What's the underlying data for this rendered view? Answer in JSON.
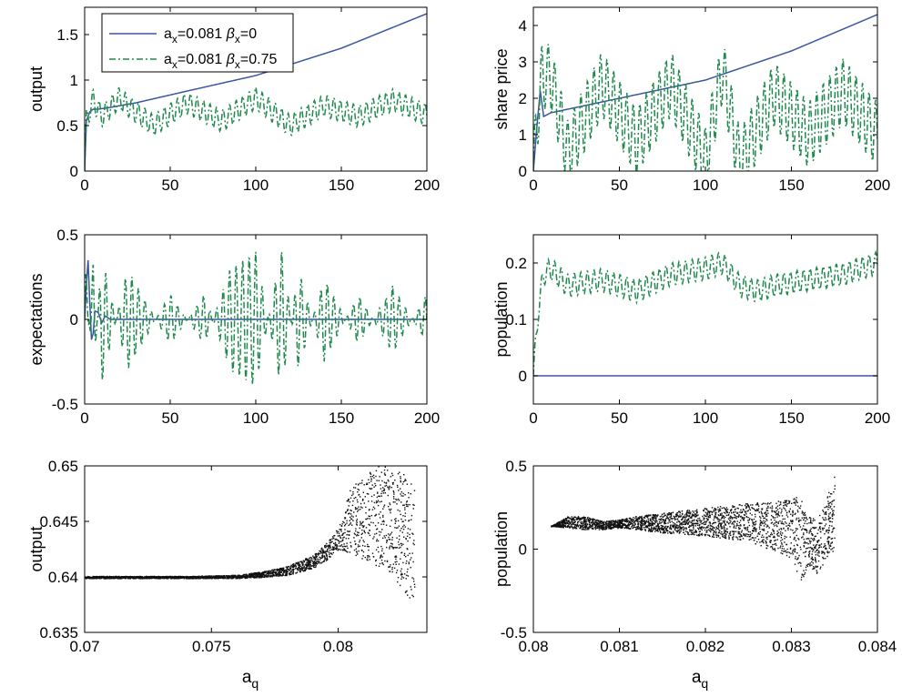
{
  "colors": {
    "blue": "#3a56a0",
    "green": "#1f8a4c",
    "black": "#111111"
  },
  "legend": {
    "entries": [
      {
        "series": "blue",
        "a_base": "a",
        "a_sub": "x",
        "a_rest": "=0.081 ",
        "b_base": "β",
        "b_sub": "x",
        "b_rest": "=0"
      },
      {
        "series": "green",
        "a_base": "a",
        "a_sub": "x",
        "a_rest": "=0.081 ",
        "b_base": "β",
        "b_sub": "x",
        "b_rest": "=0.75"
      }
    ]
  },
  "chart_data": [
    {
      "type": "line",
      "ylabel": "output",
      "xlim": [
        0,
        200
      ],
      "ylim": [
        0,
        1.8
      ],
      "xticks": [
        "0",
        "50",
        "100",
        "150",
        "200"
      ],
      "yticks": [
        "0",
        "0.5",
        "1",
        "1.5"
      ],
      "ytick_values": [
        0,
        0.5,
        1,
        1.5
      ],
      "series": [
        {
          "color": "blue",
          "style": "solid",
          "x": [
            0,
            1,
            3,
            5,
            8,
            15,
            30,
            60,
            100,
            150,
            200
          ],
          "y": [
            0,
            0.55,
            0.65,
            0.68,
            0.68,
            0.7,
            0.75,
            0.88,
            1.05,
            1.35,
            1.73
          ]
        },
        {
          "color": "green",
          "style": "dashdot",
          "x": [
            0,
            1,
            2,
            5,
            10,
            20,
            40,
            60,
            80,
            100,
            120,
            140,
            160,
            180,
            200
          ],
          "y": [
            0,
            0.55,
            0.62,
            0.78,
            0.6,
            0.8,
            0.5,
            0.75,
            0.55,
            0.8,
            0.5,
            0.72,
            0.6,
            0.78,
            0.62
          ]
        }
      ]
    },
    {
      "type": "line",
      "ylabel": "share price",
      "xlim": [
        0,
        200
      ],
      "ylim": [
        0,
        4.5
      ],
      "xticks": [
        "0",
        "50",
        "100",
        "150",
        "200"
      ],
      "yticks": [
        "0",
        "1",
        "2",
        "3",
        "4"
      ],
      "ytick_values": [
        0,
        1,
        2,
        3,
        4
      ],
      "series": [
        {
          "color": "blue",
          "style": "solid",
          "x": [
            0,
            2,
            4,
            6,
            10,
            20,
            50,
            100,
            150,
            200
          ],
          "y": [
            0,
            1.2,
            2.2,
            1.5,
            1.6,
            1.7,
            2.0,
            2.5,
            3.3,
            4.3
          ]
        },
        {
          "color": "green",
          "style": "dashdot",
          "x": [
            0,
            3,
            5,
            10,
            20,
            40,
            60,
            80,
            100,
            110,
            120,
            140,
            160,
            180,
            200
          ],
          "y": [
            0,
            1.8,
            2.6,
            2.6,
            0.5,
            2.4,
            0.8,
            2.4,
            0.3,
            2.8,
            0.2,
            2.1,
            1.0,
            2.2,
            1.0
          ]
        }
      ]
    },
    {
      "type": "line",
      "ylabel": "expectations",
      "xlim": [
        0,
        200
      ],
      "ylim": [
        -0.5,
        0.5
      ],
      "xticks": [
        "0",
        "50",
        "100",
        "150",
        "200"
      ],
      "yticks": [
        "-0.5",
        "0",
        "0.5"
      ],
      "ytick_values": [
        -0.5,
        0,
        0.5
      ],
      "series": [
        {
          "color": "blue",
          "style": "solid",
          "x": [
            0,
            1,
            2,
            3,
            4,
            5,
            6,
            8,
            10,
            12,
            15,
            20,
            200
          ],
          "y": [
            0,
            0.2,
            0.35,
            0.1,
            -0.12,
            -0.08,
            0.05,
            0.04,
            -0.02,
            0.02,
            0,
            0,
            0
          ]
        },
        {
          "color": "green",
          "style": "dashdot",
          "x": [
            0,
            5,
            10,
            25,
            50,
            70,
            85,
            100,
            115,
            125,
            140,
            160,
            180,
            200
          ],
          "y": [
            0.4,
            -0.35,
            0.38,
            -0.3,
            0.15,
            -0.15,
            0.3,
            0.4,
            -0.42,
            0.3,
            -0.25,
            0.15,
            -0.2,
            0.15
          ]
        }
      ]
    },
    {
      "type": "line",
      "ylabel": "population",
      "xlim": [
        0,
        200
      ],
      "ylim": [
        -0.05,
        0.25
      ],
      "xticks": [
        "0",
        "50",
        "100",
        "150",
        "200"
      ],
      "yticks": [
        "0",
        "0.1",
        "0.2"
      ],
      "ytick_values": [
        0,
        0.1,
        0.2
      ],
      "series": [
        {
          "color": "blue",
          "style": "solid",
          "x": [
            0,
            200
          ],
          "y": [
            0,
            0
          ]
        },
        {
          "color": "green",
          "style": "dashdot",
          "x": [
            0,
            3,
            6,
            10,
            20,
            40,
            60,
            80,
            100,
            110,
            120,
            130,
            140,
            160,
            180,
            200
          ],
          "y": [
            0,
            0.12,
            0.18,
            0.19,
            0.16,
            0.17,
            0.15,
            0.18,
            0.19,
            0.2,
            0.16,
            0.15,
            0.16,
            0.17,
            0.18,
            0.2
          ]
        }
      ]
    },
    {
      "type": "scatter",
      "ylabel": "output",
      "xlabel_base": "a",
      "xlabel_sub": "q",
      "xlim": [
        0.07,
        0.0835
      ],
      "ylim": [
        0.635,
        0.65
      ],
      "xticks": [
        "0.07",
        "0.075",
        "0.08"
      ],
      "xtick_values": [
        0.07,
        0.075,
        0.08
      ],
      "yticks": [
        "0.635",
        "0.64",
        "0.645",
        "0.65"
      ],
      "ytick_values": [
        0.635,
        0.64,
        0.645,
        0.65
      ],
      "series": [
        {
          "color": "black",
          "style": "band",
          "x": [
            0.07,
            0.072,
            0.074,
            0.076,
            0.077,
            0.078,
            0.079,
            0.0795,
            0.08,
            0.0805,
            0.081,
            0.0815,
            0.082,
            0.0825,
            0.083
          ],
          "y_low": [
            0.6399,
            0.6399,
            0.6399,
            0.6399,
            0.64,
            0.6402,
            0.6408,
            0.6415,
            0.6425,
            0.642,
            0.6415,
            0.641,
            0.6405,
            0.639,
            0.6375
          ],
          "y_high": [
            0.6401,
            0.6401,
            0.6401,
            0.6402,
            0.6405,
            0.641,
            0.642,
            0.643,
            0.6445,
            0.6482,
            0.649,
            0.65,
            0.65,
            0.6495,
            0.6485
          ]
        }
      ]
    },
    {
      "type": "scatter",
      "ylabel": "population",
      "xlabel_base": "a",
      "xlabel_sub": "q",
      "xlim": [
        0.08,
        0.084
      ],
      "ylim": [
        -0.5,
        0.5
      ],
      "xticks": [
        "0.08",
        "0.081",
        "0.082",
        "0.083",
        "0.084"
      ],
      "xtick_values": [
        0.08,
        0.081,
        0.082,
        0.083,
        0.084
      ],
      "yticks": [
        "-0.5",
        "0",
        "0.5"
      ],
      "ytick_values": [
        -0.5,
        0,
        0.5
      ],
      "series": [
        {
          "color": "black",
          "style": "band",
          "x": [
            0.0802,
            0.0804,
            0.0806,
            0.0808,
            0.081,
            0.0812,
            0.0815,
            0.082,
            0.0825,
            0.083,
            0.0831,
            0.0832,
            0.0833,
            0.0834,
            0.0835
          ],
          "y_low": [
            0.14,
            0.13,
            0.12,
            0.12,
            0.13,
            0.12,
            0.1,
            0.08,
            0.05,
            -0.05,
            -0.2,
            -0.1,
            -0.15,
            -0.05,
            0.0
          ],
          "y_high": [
            0.14,
            0.2,
            0.2,
            0.17,
            0.18,
            0.2,
            0.22,
            0.25,
            0.28,
            0.3,
            0.33,
            0.2,
            0.18,
            0.3,
            0.45
          ]
        }
      ]
    }
  ]
}
